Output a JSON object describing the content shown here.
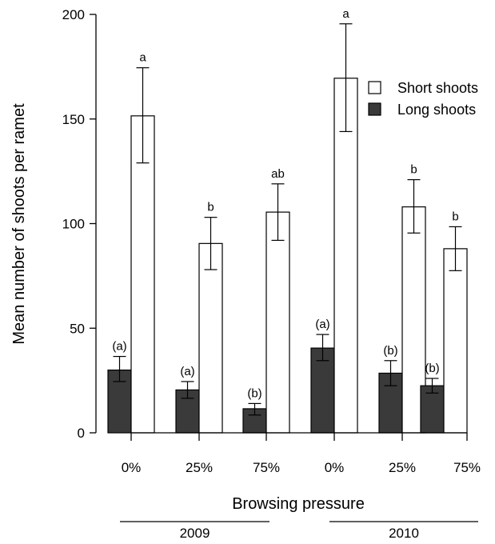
{
  "chart_data": {
    "type": "bar",
    "xlabel": "Browsing pressure",
    "ylabel": "Mean number of shoots per ramet",
    "ylim": [
      0,
      200
    ],
    "yticks": [
      0,
      50,
      100,
      150,
      200
    ],
    "categories": [
      "0%",
      "25%",
      "75%",
      "0%",
      "25%",
      "75%"
    ],
    "groups": [
      {
        "label": "2009",
        "category_indices": [
          0,
          1,
          2
        ]
      },
      {
        "label": "2010",
        "category_indices": [
          3,
          4,
          5
        ]
      }
    ],
    "legend_position": "top-right",
    "series": [
      {
        "name": "Long shoots",
        "color": "#3a3a3a",
        "values": [
          30,
          20.5,
          11.5,
          40.5,
          28.5,
          22.5
        ],
        "error_low": [
          24.5,
          16.5,
          8.5,
          34.5,
          22.5,
          19
        ],
        "error_high": [
          36.5,
          24.5,
          14,
          47,
          34.5,
          26
        ],
        "labels": [
          "(a)",
          "(a)",
          "(b)",
          "(a)",
          "(b)",
          "(b)"
        ]
      },
      {
        "name": "Short shoots",
        "color": "#ffffff",
        "values": [
          151.5,
          90.5,
          105.5,
          169.5,
          108,
          88
        ],
        "error_low": [
          129,
          78,
          92,
          144,
          95.5,
          77.5
        ],
        "error_high": [
          174.5,
          103,
          119,
          195.5,
          121,
          98.5
        ],
        "labels": [
          "a",
          "b",
          "ab",
          "a",
          "b",
          "b"
        ]
      }
    ]
  }
}
